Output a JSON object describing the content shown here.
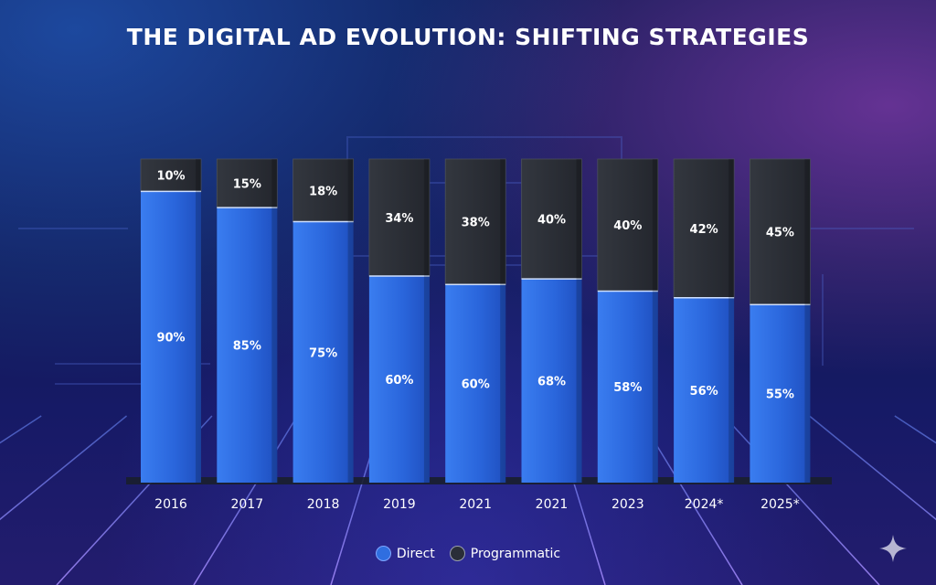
{
  "chart_data": {
    "type": "bar",
    "stacked": true,
    "title": "THE DIGITAL AD EVOLUTION: SHIFTING STRATEGIES",
    "xlabel": "",
    "ylabel": "",
    "categories": [
      "2016",
      "2017",
      "2018",
      "2019",
      "2021",
      "2021",
      "2023",
      "2024*",
      "2025*"
    ],
    "series": [
      {
        "name": "Direct",
        "color": "#2f6ee0",
        "values": [
          90,
          85,
          75,
          60,
          60,
          68,
          58,
          56,
          55
        ],
        "labels": [
          "90%",
          "85%",
          "75%",
          "60%",
          "60%",
          "68%",
          "58%",
          "56%",
          "55%"
        ]
      },
      {
        "name": "Programmatic",
        "color": "#2a2e38",
        "values": [
          10,
          15,
          18,
          34,
          38,
          40,
          40,
          42,
          45
        ],
        "labels": [
          "10%",
          "15%",
          "18%",
          "34%",
          "38%",
          "40%",
          "40%",
          "42%",
          "45%"
        ]
      }
    ],
    "grid": false,
    "legend_position": "bottom-center"
  },
  "legend": {
    "direct_label": "Direct",
    "programmatic_label": "Programmatic"
  },
  "icons": {
    "watermark": "sparkle-icon"
  }
}
